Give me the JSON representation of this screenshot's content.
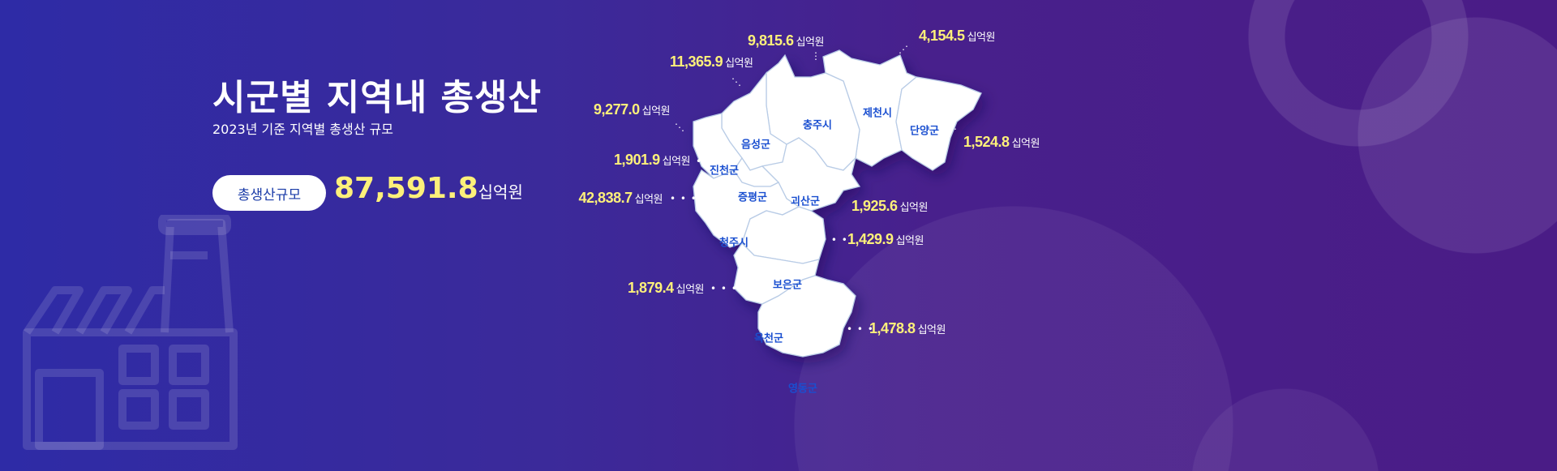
{
  "header": {
    "title": "시군별 지역내 총생산",
    "subtitle": "2023년 기준 지역별 총생산 규모"
  },
  "total": {
    "label": "총생산규모",
    "value": "87,591.8",
    "unit": "십억원"
  },
  "colors": {
    "value": "#fdf07a",
    "region_label": "#1a4fd0",
    "background": "#3b2a9a"
  },
  "icons": {
    "background": "factory-icon"
  },
  "regions": [
    {
      "name": "충주시",
      "value": "9,815.6",
      "unit": "십억원"
    },
    {
      "name": "제천시",
      "value": "4,154.5",
      "unit": "십억원"
    },
    {
      "name": "음성군",
      "value": "11,365.9",
      "unit": "십억원"
    },
    {
      "name": "진천군",
      "value": "9,277.0",
      "unit": "십억원"
    },
    {
      "name": "단양군",
      "value": "1,524.8",
      "unit": "십억원"
    },
    {
      "name": "증평군",
      "value": "1,901.9",
      "unit": "십억원"
    },
    {
      "name": "괴산군",
      "value": "1,925.6",
      "unit": "십억원"
    },
    {
      "name": "청주시",
      "value": "42,838.7",
      "unit": "십억원"
    },
    {
      "name": "보은군",
      "value": "1,429.9",
      "unit": "십억원"
    },
    {
      "name": "옥천군",
      "value": "1,879.4",
      "unit": "십억원"
    },
    {
      "name": "영동군",
      "value": "1,478.8",
      "unit": "십억원"
    }
  ]
}
